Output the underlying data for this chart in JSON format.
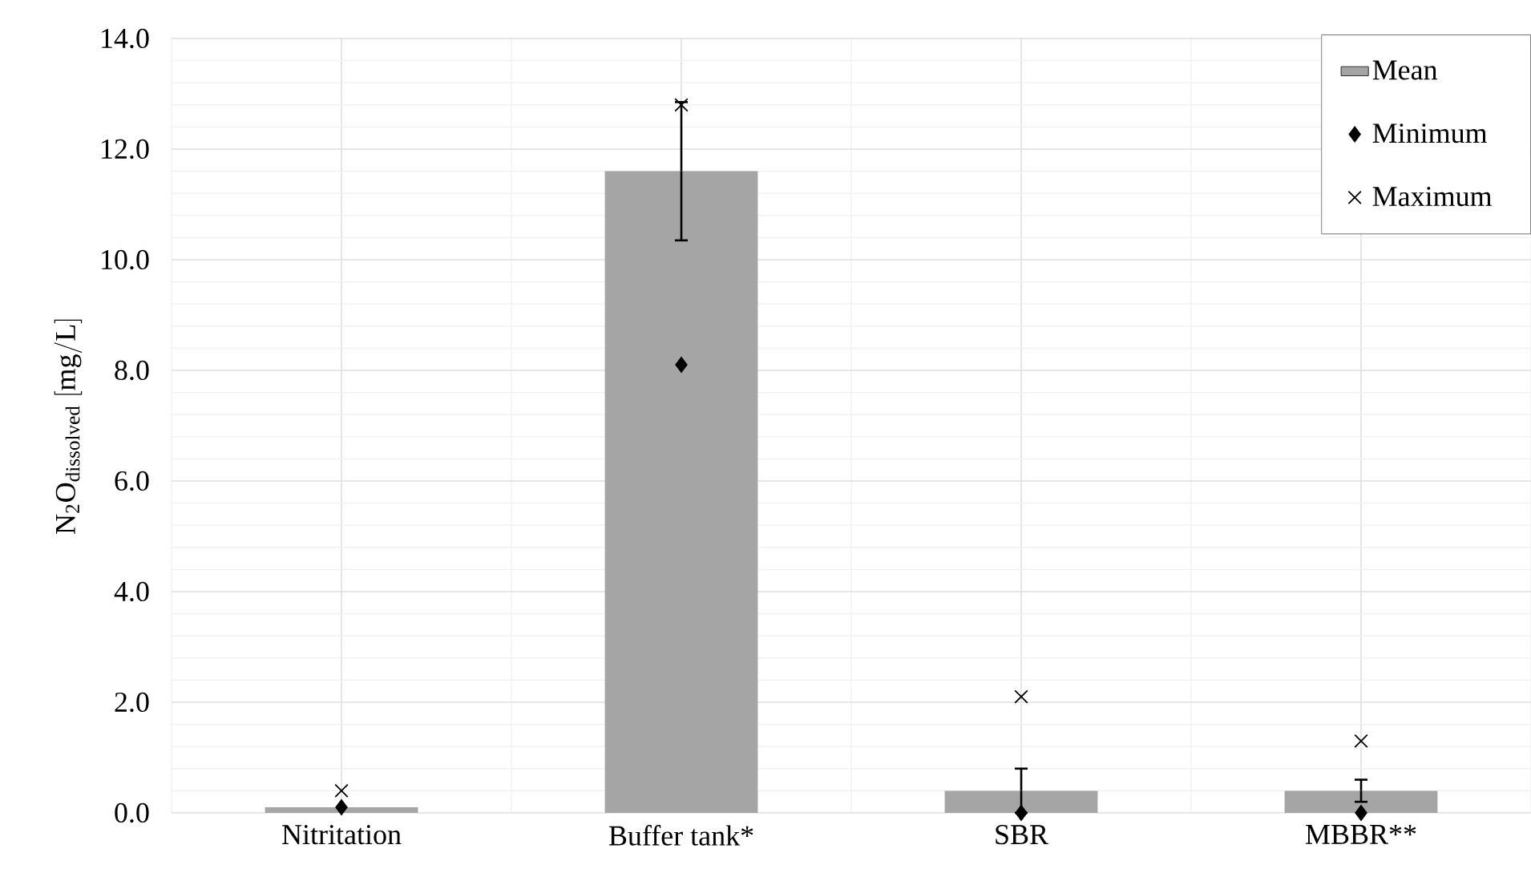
{
  "chart_data": {
    "type": "bar",
    "ylabel": "\\mathrm{N_{2}O_{dissolved}\\ [mg/L]}",
    "categories": [
      "Nitritation",
      "Buffer tank*",
      "SBR",
      "MBBR**"
    ],
    "series": [
      {
        "name": "Mean",
        "color": "#a5a5a5",
        "values": [
          0.1,
          11.6,
          0.4,
          0.4
        ],
        "errors": [
          null,
          1.25,
          0.4,
          0.2
        ]
      },
      {
        "name": "Minimum",
        "type": "scatter",
        "marker": "diamond",
        "color": "#000000",
        "values": [
          0.1,
          8.1,
          0.0,
          0.0
        ]
      },
      {
        "name": "Maximum",
        "type": "scatter",
        "marker": "cross",
        "color": "#000000",
        "values": [
          0.4,
          12.8,
          2.1,
          1.3
        ]
      }
    ],
    "ylim": [
      0,
      14
    ],
    "yticks": [
      {
        "value": 0,
        "label": "0.0"
      },
      {
        "value": 2,
        "label": "2.0"
      },
      {
        "value": 4,
        "label": "4.0"
      },
      {
        "value": 6,
        "label": "6.0"
      },
      {
        "value": 8,
        "label": "8.0"
      },
      {
        "value": 10,
        "label": "10.0"
      },
      {
        "value": 12,
        "label": "12.0"
      },
      {
        "value": 14,
        "label": "14.0"
      }
    ],
    "grid": true,
    "legend": "top right"
  }
}
